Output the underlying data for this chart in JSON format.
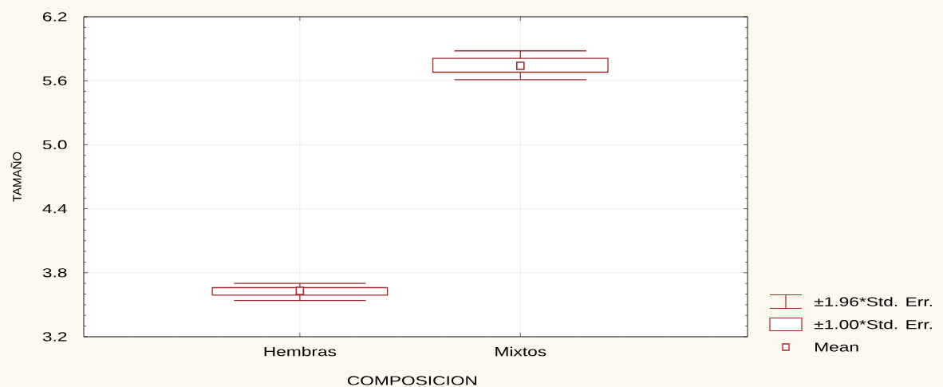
{
  "chart_data": {
    "type": "box",
    "xlabel": "COMPOSICION",
    "ylabel": "TAMAÑO",
    "categories": [
      "Hembras",
      "Mixtos"
    ],
    "color": "#a02828",
    "boxes": [
      {
        "low": 3.54,
        "q1": 3.59,
        "q3": 3.66,
        "high": 3.7,
        "mean": 3.63
      },
      {
        "low": 5.61,
        "q1": 5.68,
        "q3": 5.81,
        "high": 5.88,
        "mean": 5.74
      }
    ],
    "ylim": [
      3.2,
      6.2
    ],
    "yticks": [
      3.2,
      3.8,
      4.4,
      {
        "value": 5,
        "label": "5.0"
      },
      5.6,
      6.2
    ],
    "grid": true,
    "marker": "square",
    "annotations": [
      "±1.96*Std. Err.",
      "±1.00*Std. Err.",
      "Mean"
    ]
  }
}
